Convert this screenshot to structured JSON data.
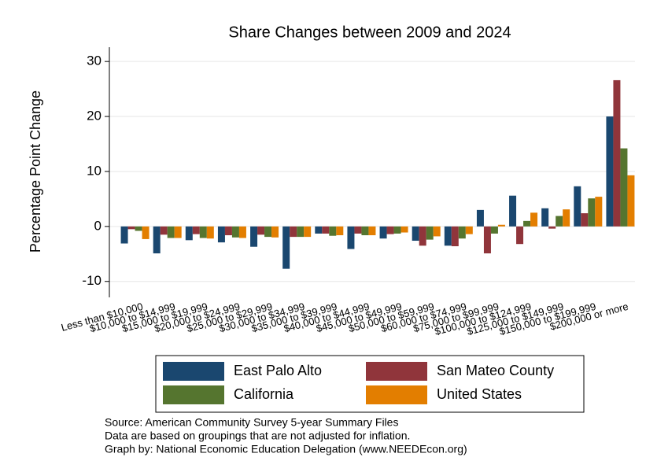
{
  "chart_data": {
    "type": "bar",
    "title": "Share Changes between 2009 and 2024",
    "y_label": "Percentage Point Change",
    "categories": [
      "Less than $10,000",
      "$10,000 to $14,999",
      "$15,000 to $19,999",
      "$20,000 to $24,999",
      "$25,000 to $29,999",
      "$30,000 to $34,999",
      "$35,000 to $39,999",
      "$40,000 to $44,999",
      "$45,000 to $49,999",
      "$50,000 to $59,999",
      "$60,000 to $74,999",
      "$75,000 to $99,999",
      "$100,000 to $124,999",
      "$125,000 to $149,999",
      "$150,000 to $199,999",
      "$200,000 or more"
    ],
    "series": [
      {
        "name": "East Palo Alto",
        "color": "#1a476f",
        "values": [
          -3.1,
          -4.9,
          -2.5,
          -2.9,
          -3.7,
          -7.7,
          -1.3,
          -4.1,
          -2.2,
          -2.6,
          -3.5,
          3.0,
          5.6,
          3.3,
          7.3,
          20.0
        ]
      },
      {
        "name": "San Mateo County",
        "color": "#90353b",
        "values": [
          -0.5,
          -1.5,
          -1.4,
          -1.6,
          -1.5,
          -1.9,
          -1.3,
          -1.3,
          -1.4,
          -3.5,
          -3.6,
          -4.9,
          -3.2,
          -0.4,
          2.4,
          26.6
        ]
      },
      {
        "name": "California",
        "color": "#55752f",
        "values": [
          -0.8,
          -2.1,
          -2.1,
          -2.0,
          -1.9,
          -1.9,
          -1.7,
          -1.6,
          -1.3,
          -2.4,
          -2.2,
          -1.3,
          1.0,
          1.9,
          5.1,
          14.2
        ]
      },
      {
        "name": "United States",
        "color": "#e37e00",
        "values": [
          -2.3,
          -2.1,
          -2.2,
          -2.1,
          -2.0,
          -1.9,
          -1.6,
          -1.6,
          -1.1,
          -1.8,
          -1.4,
          0.3,
          2.5,
          3.1,
          5.4,
          9.3
        ]
      }
    ],
    "ylim": [
      -12.9,
      32.6
    ],
    "yticks": [
      -10,
      0,
      10,
      20,
      30
    ],
    "grid": true,
    "notes": [
      "Source: American Community Survey 5-year Summary Files",
      "Data are based on groupings that are not adjusted for inflation.",
      "Graph by: National Economic Education Delegation (www.NEEDEcon.org)"
    ]
  }
}
